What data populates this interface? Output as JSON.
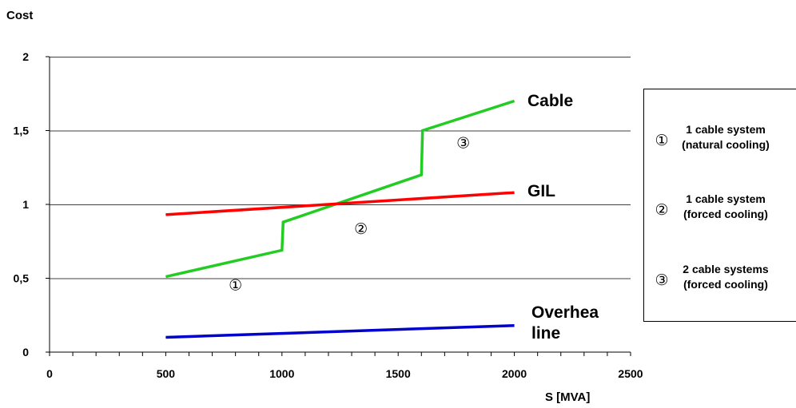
{
  "chart_data": {
    "type": "line",
    "title": "",
    "ylabel": "Cost",
    "xlabel": "S [MVA]",
    "xlim": [
      0,
      2500
    ],
    "ylim": [
      0,
      2
    ],
    "x_ticks": [
      0,
      500,
      1000,
      1500,
      2000,
      2500
    ],
    "x_tick_labels": [
      "0",
      "500",
      "1000",
      "1500",
      "2000",
      "2500"
    ],
    "y_ticks": [
      0,
      0.5,
      1,
      1.5,
      2
    ],
    "y_tick_labels": [
      "0",
      "0,5",
      "1",
      "1,5",
      "2"
    ],
    "grid": "horizontal",
    "series": [
      {
        "name": "Cable",
        "label": "Cable",
        "color": "#22cc22",
        "points": [
          [
            500,
            0.51
          ],
          [
            1000,
            0.69
          ],
          [
            1005,
            0.88
          ],
          [
            1600,
            1.2
          ],
          [
            1605,
            1.5
          ],
          [
            2000,
            1.7
          ]
        ]
      },
      {
        "name": "GIL",
        "label": "GIL",
        "color": "#ff0000",
        "points": [
          [
            500,
            0.93
          ],
          [
            2000,
            1.08
          ]
        ]
      },
      {
        "name": "Overhead line",
        "label_lines": [
          "Overhea",
          "line"
        ],
        "color": "#0000cc",
        "points": [
          [
            500,
            0.1
          ],
          [
            2000,
            0.18
          ]
        ]
      }
    ],
    "region_markers": [
      {
        "symbol": "①",
        "x": 800,
        "y": 0.42
      },
      {
        "symbol": "②",
        "x": 1340,
        "y": 0.8
      },
      {
        "symbol": "③",
        "x": 1780,
        "y": 1.38
      }
    ],
    "legend": {
      "position": "right",
      "entries": [
        {
          "symbol": "①",
          "lines": [
            "1 cable system",
            "(natural cooling)"
          ]
        },
        {
          "symbol": "②",
          "lines": [
            "1 cable system",
            "(forced cooling)"
          ]
        },
        {
          "symbol": "③",
          "lines": [
            "2 cable systems",
            "(forced cooling)"
          ]
        }
      ]
    }
  }
}
